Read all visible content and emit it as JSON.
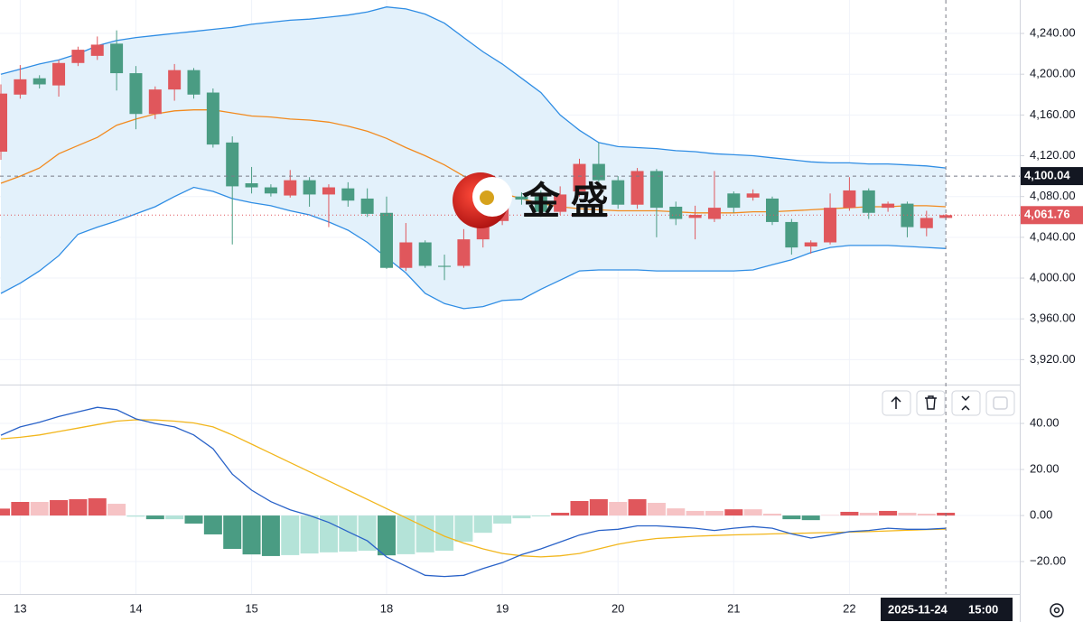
{
  "chart_data": [
    {
      "type": "candlestick",
      "categories": [
        null,
        "13",
        null,
        null,
        null,
        null,
        null,
        "14",
        null,
        null,
        null,
        null,
        null,
        "15",
        null,
        null,
        null,
        null,
        null,
        null,
        "18",
        null,
        null,
        null,
        null,
        null,
        "19",
        null,
        null,
        null,
        null,
        null,
        "20",
        null,
        null,
        null,
        null,
        null,
        "21",
        null,
        null,
        null,
        null,
        null,
        "22",
        null,
        null,
        null,
        null,
        null
      ],
      "open": [
        4124,
        4180,
        4196,
        4189,
        4211,
        4218,
        4230,
        4201,
        4161,
        4185,
        4204,
        4182,
        4133,
        4093,
        4089,
        4081,
        4096,
        4082,
        4088,
        4078,
        4064,
        4010,
        4035,
        4012,
        4012,
        4038,
        4056,
        4080,
        4080,
        4065,
        4085,
        4112,
        4096,
        4072,
        4105,
        4070,
        4059,
        4058,
        4083,
        4079,
        4078,
        4055,
        4031,
        4035,
        4069,
        4086,
        4069,
        4073,
        4049,
        4059
      ],
      "high": [
        4190,
        4209,
        4199,
        4214,
        4227,
        4237,
        4243,
        4208,
        4188,
        4210,
        4206,
        4186,
        4139,
        4109,
        4092,
        4106,
        4099,
        4092,
        4094,
        4088,
        4080,
        4054,
        4037,
        4023,
        4048,
        4062,
        4082,
        4084,
        4086,
        4090,
        4117,
        4133,
        4100,
        4108,
        4107,
        4075,
        4071,
        4105,
        4085,
        4087,
        4080,
        4058,
        4037,
        4083,
        4099,
        4088,
        4075,
        4075,
        4066,
        4063
      ],
      "low": [
        4116,
        4176,
        4186,
        4178,
        4208,
        4214,
        4184,
        4146,
        4156,
        4174,
        4176,
        4128,
        4033,
        4083,
        4080,
        4079,
        4070,
        4050,
        4070,
        4060,
        4009,
        4007,
        4010,
        3998,
        4010,
        4030,
        4052,
        4072,
        4060,
        4062,
        4080,
        4093,
        4068,
        4068,
        4040,
        4052,
        4038,
        4055,
        4064,
        4076,
        4052,
        4023,
        4024,
        4033,
        4066,
        4058,
        4065,
        4040,
        4041,
        4057
      ],
      "close": [
        4181,
        4195,
        4190,
        4211,
        4224,
        4229,
        4201,
        4161,
        4185,
        4204,
        4180,
        4131,
        4090,
        4089,
        4083,
        4096,
        4082,
        4089,
        4076,
        4063,
        4010,
        4035,
        4012,
        4011,
        4038,
        4056,
        4078,
        4077,
        4065,
        4082,
        4112,
        4096,
        4072,
        4105,
        4069,
        4058,
        4062,
        4069,
        4069,
        4083,
        4055,
        4030,
        4035,
        4069,
        4086,
        4064,
        4073,
        4050,
        4059,
        4061.76
      ],
      "up_color": "#e0575c",
      "down_color": "#4a9c83",
      "bands": {
        "fill": "#e3f1fb",
        "upper": {
          "color": "#2f8de4",
          "values": [
            4200,
            4205,
            4210,
            4214,
            4220,
            4228,
            4233,
            4236,
            4238,
            4240,
            4242,
            4244,
            4246,
            4249,
            4251,
            4253,
            4254,
            4256,
            4258,
            4261,
            4266,
            4264,
            4259,
            4250,
            4236,
            4222,
            4210,
            4196,
            4182,
            4160,
            4145,
            4133,
            4129,
            4128,
            4127,
            4125,
            4124,
            4122,
            4121,
            4120,
            4118,
            4116,
            4114,
            4113,
            4113,
            4112,
            4112,
            4111,
            4110,
            4108
          ]
        },
        "middle": {
          "color": "#f28a1e",
          "values": [
            4093,
            4100,
            4108,
            4122,
            4130,
            4138,
            4150,
            4156,
            4161,
            4164,
            4165,
            4165,
            4162,
            4159,
            4158,
            4156,
            4155,
            4153,
            4149,
            4144,
            4137,
            4128,
            4120,
            4111,
            4100,
            4090,
            4083,
            4078,
            4073,
            4070,
            4068,
            4067,
            4066,
            4066,
            4066,
            4065,
            4064,
            4064,
            4064,
            4065,
            4065,
            4066,
            4067,
            4068,
            4069,
            4070,
            4070,
            4071,
            4071,
            4070
          ]
        },
        "lower": {
          "color": "#2f8de4",
          "values": [
            3985,
            3995,
            4007,
            4022,
            4043,
            4050,
            4056,
            4063,
            4070,
            4080,
            4089,
            4085,
            4078,
            4074,
            4071,
            4066,
            4062,
            4055,
            4047,
            4035,
            4020,
            4005,
            3985,
            3975,
            3970,
            3972,
            3978,
            3979,
            3989,
            3998,
            4007,
            4008,
            4008,
            4008,
            4007,
            4007,
            4007,
            4007,
            4007,
            4008,
            4013,
            4018,
            4025,
            4030,
            4032,
            4032,
            4032,
            4031,
            4030,
            4029
          ]
        }
      },
      "ylim": [
        3896.4,
        4272.8
      ],
      "yticks": [
        {
          "value": 3920,
          "label": "3,920.00"
        },
        {
          "value": 3960,
          "label": "3,960.00"
        },
        {
          "value": 4000,
          "label": "4,000.00"
        },
        {
          "value": 4040,
          "label": "4,040.00"
        },
        {
          "value": 4080,
          "label": "4,080.00"
        },
        {
          "value": 4120,
          "label": "4,120.00"
        },
        {
          "value": 4160,
          "label": "4,160.00"
        },
        {
          "value": 4200,
          "label": "4,200.00"
        },
        {
          "value": 4240,
          "label": "4,240.00"
        }
      ],
      "crosshair_price": {
        "value": 4100.04,
        "label": "4,100.04"
      },
      "last_price": {
        "value": 4061.76,
        "label": "4,061.76"
      },
      "crosshair_date": "2025-11-24",
      "crosshair_time": "15:00",
      "watermark": "金 盛"
    },
    {
      "type": "macd",
      "macd": {
        "color": "#2962c8",
        "values": [
          34.9,
          38.5,
          40.5,
          43,
          45,
          47,
          46,
          42,
          40,
          38.5,
          35,
          29,
          18,
          11,
          6,
          2.5,
          0,
          -3,
          -7,
          -11,
          -18,
          -22,
          -26,
          -26.5,
          -26,
          -23,
          -20.5,
          -17,
          -14.5,
          -11.5,
          -8.5,
          -6.5,
          -6,
          -4.5,
          -4.5,
          -5,
          -5.5,
          -6.5,
          -5.5,
          -4.8,
          -5.5,
          -8,
          -9.8,
          -8.5,
          -7,
          -6.5,
          -5.5,
          -6,
          -6,
          -5.5
        ]
      },
      "signal": {
        "color": "#f2b61c",
        "values": [
          33.3,
          34,
          35,
          36.5,
          38,
          39.5,
          41,
          41.6,
          41.5,
          41,
          40.2,
          38.5,
          35,
          31,
          27,
          23,
          19,
          15,
          11,
          7,
          3,
          -1,
          -5,
          -9,
          -12,
          -14.5,
          -16.5,
          -17.5,
          -18,
          -17.5,
          -16.5,
          -14.5,
          -12.5,
          -11,
          -10,
          -9.5,
          -9,
          -8.7,
          -8.4,
          -8.2,
          -8,
          -7.8,
          -7.6,
          -7.4,
          -7.2,
          -7,
          -6.7,
          -6.4,
          -6.1,
          -5.9
        ]
      },
      "histogram": {
        "values": [
          3,
          5.9,
          5.9,
          6.7,
          7.1,
          7.5,
          5.1,
          -0.5,
          -1.6,
          -1.6,
          -3.5,
          -8.2,
          -14.5,
          -16.9,
          -17.6,
          -17.2,
          -16.5,
          -16,
          -15.7,
          -15.3,
          -17.3,
          -16.8,
          -16,
          -15.3,
          -11.4,
          -7.5,
          -3.5,
          -1.2,
          -0.4,
          1.2,
          6.3,
          7.1,
          5.9,
          7.1,
          5.5,
          3.1,
          2,
          2,
          2.7,
          2.7,
          0.8,
          -1.6,
          -2,
          0.2,
          1.6,
          1.2,
          2,
          1.2,
          0.8,
          1.2
        ],
        "positive_colors": [
          "#e0575c",
          "#f6c3c5"
        ],
        "negative_colors": [
          "#4a9c83",
          "#b4e3d8"
        ]
      },
      "ylim": [
        -34.1,
        56.1
      ],
      "yticks": [
        {
          "value": -20,
          "label": "−20.00"
        },
        {
          "value": 0,
          "label": "0.00"
        },
        {
          "value": 20,
          "label": "20.00"
        },
        {
          "value": 40,
          "label": "40.00"
        }
      ]
    }
  ]
}
